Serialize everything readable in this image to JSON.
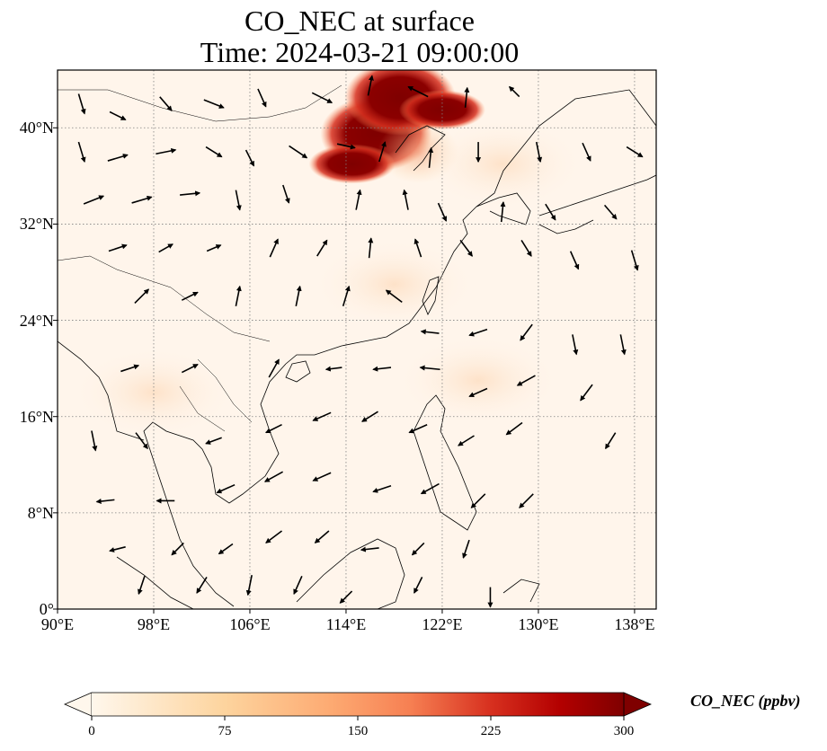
{
  "title": {
    "line1": "CO_NEC at surface",
    "line2": "Time: 2024-03-21 09:00:00"
  },
  "map": {
    "lon_range": [
      90,
      139.8
    ],
    "lat_range": [
      0,
      44.8
    ],
    "x_ticks": [
      "90°E",
      "98°E",
      "106°E",
      "114°E",
      "122°E",
      "130°E",
      "138°E"
    ],
    "x_tick_values": [
      90,
      98,
      106,
      114,
      122,
      130,
      138
    ],
    "y_ticks": [
      "0°",
      "8°N",
      "16°N",
      "24°N",
      "32°N",
      "40°N"
    ],
    "y_tick_values": [
      0,
      8,
      16,
      24,
      32,
      40
    ],
    "gridlines": true,
    "colors": {
      "background": "#fff5eb",
      "plume_dark": "#7f0000",
      "plume_mid": "#d7301f",
      "plume_light": "#fdbb84",
      "coast": "#000000",
      "grid": "#808080"
    }
  },
  "chart_data": {
    "type": "heatmap",
    "title": "CO_NEC at surface",
    "subtitle": "Time: 2024-03-21 09:00:00",
    "xlabel": "",
    "ylabel": "",
    "xlim": [
      90,
      139.8
    ],
    "ylim": [
      0,
      44.8
    ],
    "plume_hotspots": [
      {
        "lon": 116.5,
        "lat": 39.5,
        "value": 300
      },
      {
        "lon": 118.5,
        "lat": 42.5,
        "value": 250
      },
      {
        "lon": 122,
        "lat": 41.5,
        "value": 200
      },
      {
        "lon": 114.5,
        "lat": 37,
        "value": 180
      },
      {
        "lon": 120,
        "lat": 38,
        "value": 90
      },
      {
        "lon": 127,
        "lat": 37,
        "value": 40
      },
      {
        "lon": 118,
        "lat": 27,
        "value": 25
      },
      {
        "lon": 125,
        "lat": 19,
        "value": 20
      },
      {
        "lon": 98,
        "lat": 18,
        "value": 15
      }
    ],
    "wind_vectors": [
      [
        92,
        42,
        0.3,
        -1
      ],
      [
        95,
        41,
        0.8,
        -0.4
      ],
      [
        99,
        42,
        0.6,
        -0.7
      ],
      [
        103,
        42,
        1,
        -0.4
      ],
      [
        107,
        42.5,
        0.4,
        -0.9
      ],
      [
        112,
        42.5,
        1,
        -0.5
      ],
      [
        116,
        43.5,
        0.2,
        1
      ],
      [
        120,
        43,
        -1,
        0.5
      ],
      [
        124,
        42.5,
        0.1,
        1
      ],
      [
        128,
        43,
        -0.5,
        0.5
      ],
      [
        92,
        38,
        0.3,
        -1
      ],
      [
        95,
        37.5,
        1,
        0.3
      ],
      [
        99,
        38,
        1,
        0.2
      ],
      [
        103,
        38,
        0.8,
        -0.5
      ],
      [
        106,
        37.5,
        0.4,
        -0.8
      ],
      [
        110,
        38,
        0.9,
        -0.6
      ],
      [
        114,
        38.5,
        0.9,
        -0.2
      ],
      [
        117,
        38,
        0.3,
        1
      ],
      [
        121,
        37.5,
        0.1,
        1
      ],
      [
        125,
        38,
        0,
        -1
      ],
      [
        130,
        38,
        0.2,
        -1
      ],
      [
        134,
        38,
        0.4,
        -0.9
      ],
      [
        138,
        38,
        0.8,
        -0.5
      ],
      [
        93,
        34,
        1,
        0.4
      ],
      [
        97,
        34,
        1,
        0.3
      ],
      [
        101,
        34.5,
        1,
        0.1
      ],
      [
        105,
        34,
        0.2,
        -1
      ],
      [
        109,
        34.5,
        0.3,
        -0.9
      ],
      [
        115,
        34,
        0.2,
        1
      ],
      [
        119,
        34,
        -0.2,
        1
      ],
      [
        122,
        33,
        0.4,
        -0.9
      ],
      [
        127,
        33,
        0.1,
        1
      ],
      [
        131,
        33,
        0.5,
        -0.8
      ],
      [
        136,
        33,
        0.6,
        -0.7
      ],
      [
        95,
        30,
        0.9,
        0.3
      ],
      [
        99,
        30,
        0.7,
        0.4
      ],
      [
        103,
        30,
        0.7,
        0.3
      ],
      [
        108,
        30,
        0.4,
        0.9
      ],
      [
        112,
        30,
        0.5,
        0.8
      ],
      [
        116,
        30,
        0.1,
        1
      ],
      [
        120,
        30,
        -0.3,
        0.9
      ],
      [
        124,
        30,
        0.6,
        -0.8
      ],
      [
        129,
        30,
        0.5,
        -0.8
      ],
      [
        133,
        29,
        0.4,
        -0.9
      ],
      [
        138,
        29,
        0.3,
        -1
      ],
      [
        97,
        26,
        0.7,
        0.7
      ],
      [
        101,
        26,
        0.8,
        0.4
      ],
      [
        105,
        26,
        0.2,
        1
      ],
      [
        110,
        26,
        0.2,
        1
      ],
      [
        114,
        26,
        0.3,
        1
      ],
      [
        118,
        26,
        -0.8,
        0.6
      ],
      [
        121,
        23,
        -0.9,
        0.1
      ],
      [
        125,
        23,
        -0.9,
        -0.3
      ],
      [
        129,
        23,
        -0.6,
        -0.8
      ],
      [
        133,
        22,
        0.2,
        -1
      ],
      [
        137,
        22,
        0.2,
        -1
      ],
      [
        96,
        20,
        0.9,
        0.3
      ],
      [
        101,
        20,
        0.8,
        0.4
      ],
      [
        108,
        20,
        0.5,
        0.9
      ],
      [
        113,
        20,
        -0.8,
        -0.1
      ],
      [
        117,
        20,
        -0.9,
        -0.1
      ],
      [
        121,
        20,
        -1,
        0.1
      ],
      [
        125,
        18,
        -0.9,
        -0.4
      ],
      [
        129,
        19,
        -0.9,
        -0.5
      ],
      [
        134,
        18,
        -0.6,
        -0.8
      ],
      [
        93,
        14,
        0.2,
        -1
      ],
      [
        97,
        14,
        0.6,
        -0.8
      ],
      [
        103,
        14,
        -0.8,
        -0.3
      ],
      [
        108,
        15,
        -0.8,
        -0.4
      ],
      [
        112,
        16,
        -0.9,
        -0.4
      ],
      [
        116,
        16,
        -0.8,
        -0.5
      ],
      [
        120,
        15,
        -0.9,
        -0.4
      ],
      [
        124,
        14,
        -0.8,
        -0.5
      ],
      [
        128,
        15,
        -0.8,
        -0.6
      ],
      [
        136,
        14,
        -0.5,
        -0.8
      ],
      [
        94,
        9,
        -0.9,
        -0.1
      ],
      [
        99,
        9,
        -0.9,
        0
      ],
      [
        104,
        10,
        -0.9,
        -0.4
      ],
      [
        108,
        11,
        -0.9,
        -0.5
      ],
      [
        112,
        11,
        -0.9,
        -0.4
      ],
      [
        117,
        10,
        -0.9,
        -0.3
      ],
      [
        121,
        10,
        -0.9,
        -0.5
      ],
      [
        125,
        9,
        -0.7,
        -0.7
      ],
      [
        129,
        9,
        -0.7,
        -0.7
      ],
      [
        95,
        5,
        -0.8,
        -0.2
      ],
      [
        100,
        5,
        -0.6,
        -0.6
      ],
      [
        104,
        5,
        -0.7,
        -0.5
      ],
      [
        108,
        6,
        -0.8,
        -0.6
      ],
      [
        112,
        6,
        -0.7,
        -0.6
      ],
      [
        116,
        5,
        -0.9,
        -0.1
      ],
      [
        120,
        5,
        -0.6,
        -0.6
      ],
      [
        124,
        5,
        -0.3,
        -0.9
      ],
      [
        97,
        2,
        -0.3,
        -0.9
      ],
      [
        102,
        2,
        -0.5,
        -0.8
      ],
      [
        106,
        2,
        -0.2,
        -1
      ],
      [
        110,
        2,
        -0.4,
        -0.9
      ],
      [
        114,
        1,
        -0.6,
        -0.6
      ],
      [
        120,
        2,
        -0.4,
        -0.8
      ],
      [
        126,
        1,
        0,
        -1
      ]
    ],
    "colorbar": {
      "label": "CO_NEC (ppbv)",
      "min": 0,
      "max": 300,
      "ticks": [
        "0",
        "75",
        "150",
        "225",
        "300"
      ],
      "extend": "both",
      "colormap": "OrRd"
    }
  }
}
